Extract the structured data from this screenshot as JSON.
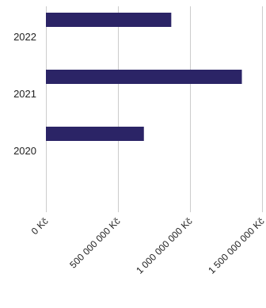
{
  "chart_data": {
    "type": "bar",
    "orientation": "horizontal",
    "categories": [
      "2022",
      "2021",
      "2020"
    ],
    "values": [
      870000000,
      1360000000,
      680000000
    ],
    "xlim": [
      0,
      1500000000
    ],
    "xticks": [
      0,
      500000000,
      1000000000,
      1500000000
    ],
    "xtick_labels": [
      "0 Kč",
      "500 000 000 Kč",
      "1 000 000 000 Kč",
      "1 500 000 000 Kč"
    ],
    "title": "",
    "xlabel": "",
    "ylabel": "",
    "grid": "vertical",
    "legend": "none",
    "bar_color": "#2b2466",
    "grid_color": "#cccccc"
  }
}
